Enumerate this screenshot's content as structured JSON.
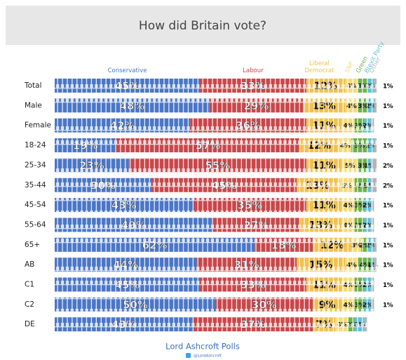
{
  "chart_data": {
    "type": "bar",
    "orientation": "horizontal",
    "stacked": true,
    "title": "How did Britain vote?",
    "categories": [
      "Total",
      "Male",
      "Female",
      "18-24",
      "25-34",
      "35-44",
      "45-54",
      "55-64",
      "65+",
      "AB",
      "C1",
      "C2",
      "DE"
    ],
    "series": [
      {
        "name": "Conservative",
        "color": "#4a76c6",
        "values": [
          45,
          48,
          42,
          19,
          23,
          30,
          43,
          49,
          62,
          44,
          45,
          50,
          43
        ],
        "value_labels": [
          "45%",
          "48%",
          "42%",
          "19%",
          "23%",
          "30%",
          "43%",
          "49%",
          "62%",
          "44%",
          "45%",
          "50%",
          "43%"
        ]
      },
      {
        "name": "Labour",
        "color": "#c8474a",
        "values": [
          33,
          29,
          36,
          57,
          55,
          45,
          35,
          27,
          18,
          31,
          33,
          30,
          37
        ],
        "value_labels": [
          "33%",
          "29%",
          "36%",
          "57%",
          "55%",
          "45%",
          "35%",
          "27%",
          "18%",
          "31%",
          "33%",
          "30%",
          "37%"
        ]
      },
      {
        "name": "Liberal Democrat",
        "color": "#f1c14f",
        "values": [
          12,
          13,
          11,
          12,
          11,
          13,
          11,
          13,
          12,
          15,
          11,
          9,
          7
        ],
        "value_labels": [
          "12%",
          "13%",
          "11%",
          "12%",
          "11%",
          "13%",
          "11%",
          "13%",
          "12%",
          "15%",
          "11%",
          "9%",
          "7%"
        ]
      },
      {
        "name": "SNP",
        "color": "#f4dc7a",
        "values": [
          4,
          4,
          4,
          4,
          5,
          5,
          4,
          4,
          3,
          4,
          4,
          4,
          4
        ],
        "value_labels": [
          "4%",
          "4%",
          "4%",
          "4%",
          "5%",
          "5%",
          "4%",
          "4%",
          "3%",
          "4%",
          "4%",
          "4%",
          "4%"
        ]
      },
      {
        "name": "Green",
        "color": "#6bb24c",
        "values": [
          3,
          3,
          3,
          5,
          3,
          4,
          3,
          3,
          2,
          4,
          3,
          3,
          2
        ],
        "value_labels": [
          "3%",
          "3%",
          "3%",
          "5%",
          "3%",
          "4%",
          "3%",
          "3%",
          "2%",
          "4%",
          "3%",
          "3%",
          "2%"
        ]
      },
      {
        "name": "Brexit Party",
        "color": "#5bc2dc",
        "values": [
          2,
          2,
          2,
          2,
          1,
          1,
          2,
          2,
          2,
          1,
          2,
          2,
          3
        ],
        "value_labels": [
          "2%",
          "2%",
          "2%",
          "2%",
          "1%",
          "1%",
          "2%",
          "2%",
          "2%",
          "1%",
          "2%",
          "2%",
          "3%"
        ]
      },
      {
        "name": "Other",
        "color": "#b4b4b4",
        "values": [
          1,
          1,
          1,
          1,
          2,
          2,
          1,
          1,
          1,
          1,
          1,
          1,
          1
        ],
        "value_labels": [
          "1%",
          "1%",
          "1%",
          "1%",
          "2%",
          "2%",
          "1%",
          "1%",
          "1%",
          "1%",
          "1%",
          "1%",
          null
        ]
      }
    ],
    "source": "Lord Ashcroft Polls",
    "credit": "@LordAshcroft"
  }
}
